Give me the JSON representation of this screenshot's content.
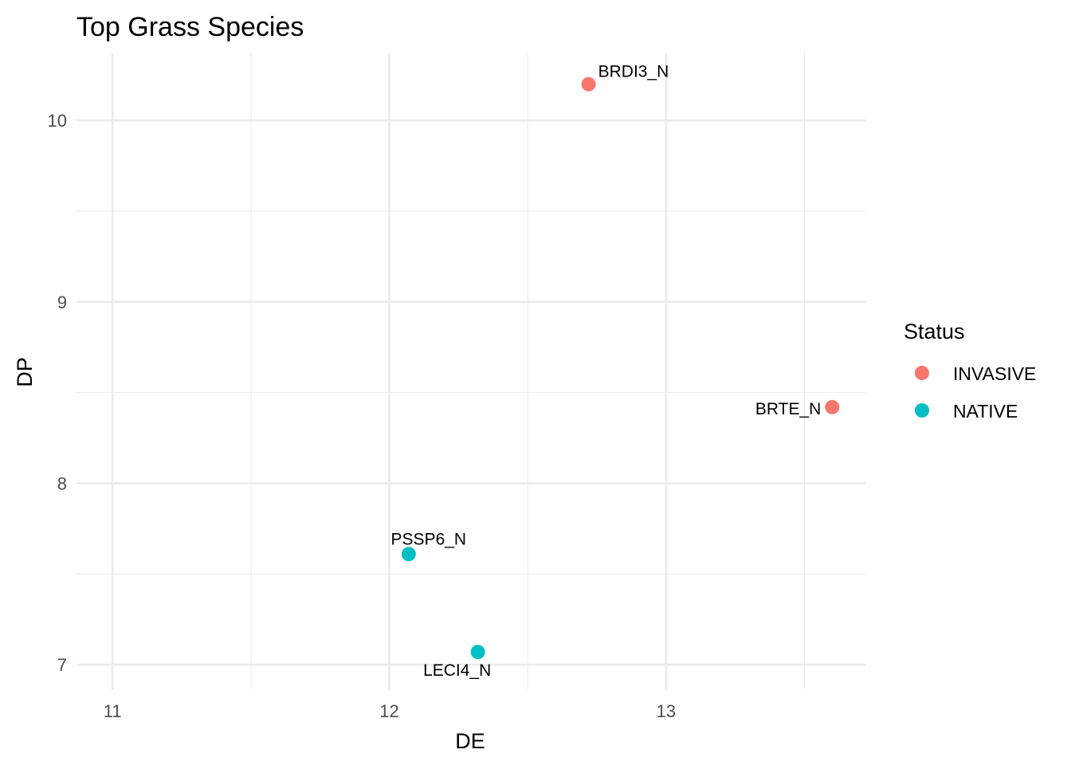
{
  "chart_data": {
    "type": "scatter",
    "title": "Top Grass Species",
    "xlabel": "DE",
    "ylabel": "DP",
    "xlim": [
      10.87,
      13.72
    ],
    "ylim": [
      6.86,
      10.37
    ],
    "x_ticks": [
      11,
      12,
      13
    ],
    "x_tick_labels": [
      "11",
      "12",
      "13"
    ],
    "y_ticks": [
      7,
      8,
      9,
      10
    ],
    "y_tick_labels": [
      "7",
      "8",
      "9",
      "10"
    ],
    "x_minor_ticks": [
      11.5,
      12.5,
      13.5
    ],
    "y_minor_ticks": [
      7.5,
      8.5,
      9.5
    ],
    "grid": true,
    "legend": {
      "title": "Status",
      "position": "right",
      "entries": [
        {
          "label": "INVASIVE",
          "color": "#F8766D"
        },
        {
          "label": "NATIVE",
          "color": "#00BFC4"
        }
      ]
    },
    "points": [
      {
        "label": "BRDI3_N",
        "x": 12.72,
        "y": 10.2,
        "status": "INVASIVE",
        "label_side": "upper-right"
      },
      {
        "label": "BRTE_N",
        "x": 13.6,
        "y": 8.42,
        "status": "INVASIVE",
        "label_side": "left"
      },
      {
        "label": "PSSP6_N",
        "x": 12.07,
        "y": 7.61,
        "status": "NATIVE",
        "label_side": "above"
      },
      {
        "label": "LECI4_N",
        "x": 12.32,
        "y": 7.07,
        "status": "NATIVE",
        "label_side": "below"
      }
    ]
  }
}
